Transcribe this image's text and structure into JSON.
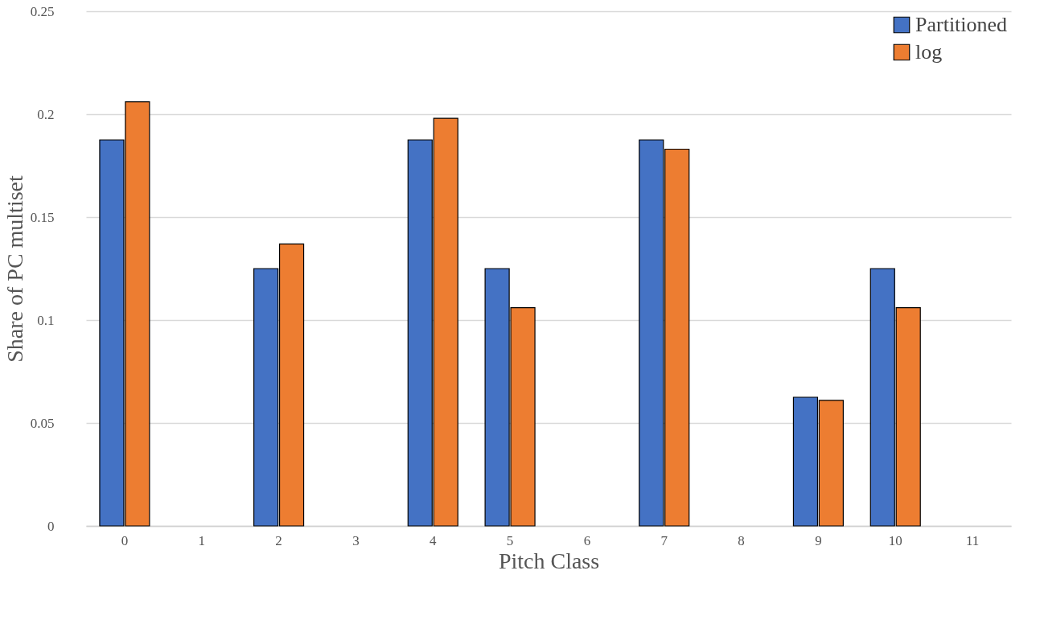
{
  "chart_data": {
    "type": "bar",
    "xlabel": "Pitch Class",
    "ylabel": "Share of PC multiset",
    "categories": [
      "0",
      "1",
      "2",
      "3",
      "4",
      "5",
      "6",
      "7",
      "8",
      "9",
      "10",
      "11"
    ],
    "series": [
      {
        "name": "Partitioned",
        "color": "#4472c4",
        "values": [
          0.1875,
          null,
          0.125,
          null,
          0.1875,
          0.125,
          null,
          0.1875,
          null,
          0.0625,
          0.125,
          null
        ]
      },
      {
        "name": "log",
        "color": "#ed7d31",
        "values": [
          0.206,
          null,
          0.137,
          null,
          0.198,
          0.106,
          null,
          0.183,
          null,
          0.061,
          0.106,
          null
        ]
      }
    ],
    "ylim": [
      0,
      0.25
    ],
    "yticks": [
      0,
      0.05,
      0.1,
      0.15,
      0.2,
      0.25
    ],
    "grid": "y",
    "legend": "top right"
  }
}
